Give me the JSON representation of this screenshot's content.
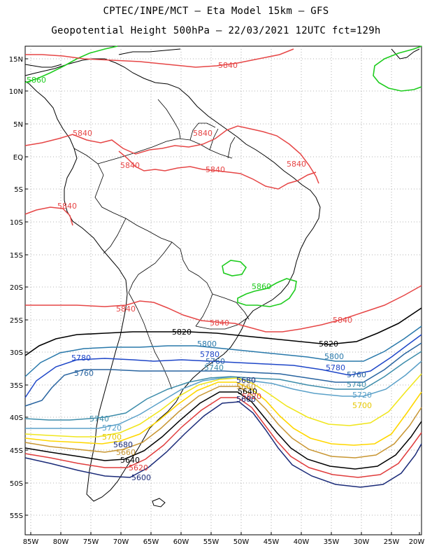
{
  "header": {
    "title_line1": "CPTEC/INPE/MCT –  Eta Model 15km – GFS",
    "title_line2": "Geopotential Height 500hPa – 22/03/2021 12UTC fct=129h"
  },
  "axes": {
    "lat_ticks": [
      "15N",
      "10N",
      "5N",
      "EQ",
      "5S",
      "10S",
      "15S",
      "20S",
      "25S",
      "30S",
      "35S",
      "40S",
      "45S",
      "50S",
      "55S"
    ],
    "lon_ticks": [
      "85W",
      "80W",
      "75W",
      "70W",
      "65W",
      "60W",
      "55W",
      "50W",
      "45W",
      "40W",
      "35W",
      "30W",
      "25W",
      "20W"
    ]
  },
  "colors": {
    "c5580": "#1a2a78",
    "c5620": "#e03c3c",
    "c5640": "#000000",
    "c5660": "#c89632",
    "c5680": "#f0e61e",
    "c5700": "#ffd700",
    "c5720": "#5aa0c8",
    "c5740": "#3c8caa",
    "c5760": "#2864a0",
    "c5780": "#1e46c8",
    "c5800": "#2878aa",
    "c5820": "#000000",
    "c5840": "#e64646",
    "c5860": "#1ecc1e"
  },
  "contour_labels": {
    "l5840_a": "5840",
    "l5840_b": "5840",
    "l5840_c": "5840",
    "l5840_d": "5840",
    "l5840_e": "5840",
    "l5840_f": "5840",
    "l5840_g": "5840",
    "l5840_h": "5840",
    "l5840_i": "5840",
    "l5840_j": "5840",
    "l5860_a": "5860",
    "l5860_b": "5860",
    "l5820_a": "5820",
    "l5820_b": "5820",
    "l5800_a": "5800",
    "l5800_b": "5800",
    "l5780_a": "5780",
    "l5780_b": "5780",
    "l5780_c": "5780",
    "l5760_a": "5760",
    "l5760_b": "5760",
    "l5760_c": "5760",
    "l5740_a": "5740",
    "l5740_b": "5740",
    "l5740_c": "5740",
    "l5720_a": "5720",
    "l5720_b": "5720",
    "l5700_a": "5700",
    "l5700_b": "5700",
    "l5680_a": "5680",
    "l5680_b": "5680",
    "l5660_a": "5660",
    "l5660_b": "5660",
    "l5640_a": "5640",
    "l5640_b": "5640",
    "l5620_a": "5620",
    "l5620_b": "5620",
    "l5600_a": "5600",
    "l5600_b": "5600"
  }
}
